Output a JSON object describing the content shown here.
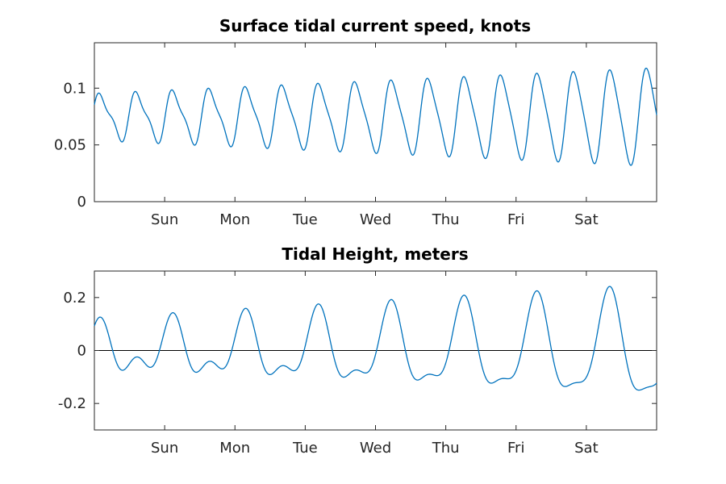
{
  "chart_data": [
    {
      "type": "line",
      "title": "Surface tidal current speed, knots",
      "xlabel": "",
      "ylabel": "",
      "xlim": [
        0,
        8
      ],
      "ylim": [
        0,
        0.14
      ],
      "x_ticks": [
        {
          "day": 1,
          "label": "Sun"
        },
        {
          "day": 2,
          "label": "Mon"
        },
        {
          "day": 3,
          "label": "Tue"
        },
        {
          "day": 4,
          "label": "Wed"
        },
        {
          "day": 5,
          "label": "Thu"
        },
        {
          "day": 6,
          "label": "Fri"
        },
        {
          "day": 7,
          "label": "Sat"
        }
      ],
      "y_ticks": [
        {
          "value": 0,
          "label": "0"
        },
        {
          "value": 0.05,
          "label": "0.05"
        },
        {
          "value": 0.1,
          "label": "0.1"
        }
      ],
      "model": {
        "base": 0.075,
        "amp_start": 0.018,
        "amp_slope": 0.003,
        "freq": 1.93,
        "phase": 0.35,
        "amp2": 0.006,
        "freq2": 3.86
      },
      "zero_line": false
    },
    {
      "type": "line",
      "title": "Tidal Height, meters",
      "xlabel": "",
      "ylabel": "",
      "xlim": [
        0,
        8
      ],
      "ylim": [
        -0.3,
        0.3
      ],
      "x_ticks": [
        {
          "day": 1,
          "label": "Sun"
        },
        {
          "day": 2,
          "label": "Mon"
        },
        {
          "day": 3,
          "label": "Tue"
        },
        {
          "day": 4,
          "label": "Wed"
        },
        {
          "day": 5,
          "label": "Thu"
        },
        {
          "day": 6,
          "label": "Fri"
        },
        {
          "day": 7,
          "label": "Sat"
        }
      ],
      "y_ticks": [
        {
          "value": -0.2,
          "label": "-0.2"
        },
        {
          "value": 0,
          "label": "0"
        },
        {
          "value": 0.2,
          "label": "0.2"
        }
      ],
      "model": {
        "a1_start": 0.07,
        "a1_slope": 0.016,
        "freq1": 0.965,
        "phase1": 1.15,
        "a2": 0.055,
        "freq2": 1.93,
        "phase2": 0.55
      },
      "zero_line": true
    }
  ]
}
